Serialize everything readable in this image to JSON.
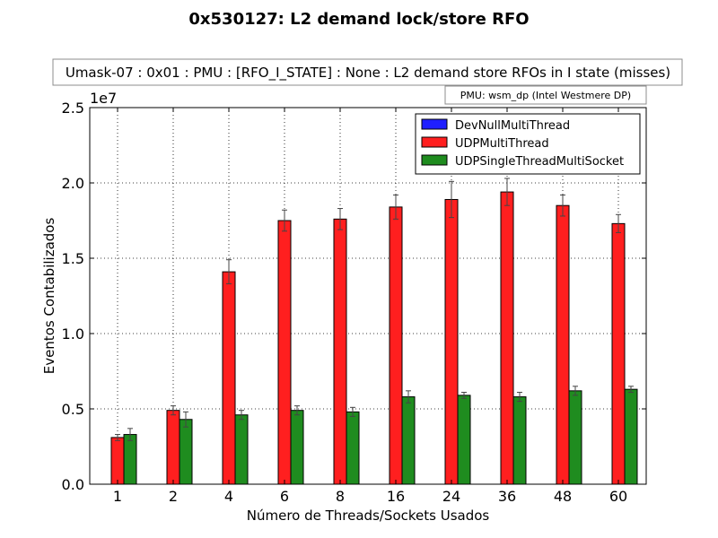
{
  "chart_data": {
    "type": "bar",
    "title": "0x530127: L2 demand lock/store RFO",
    "subtitle": "Umask-07 : 0x01 : PMU : [RFO_I_STATE] : None : L2 demand store RFOs in I state (misses)",
    "pmu_note": "PMU: wsm_dp (Intel Westmere DP)",
    "xlabel": "Número de Threads/Sockets Usados",
    "ylabel": "Eventos Contabilizados",
    "scale_label": "1e7",
    "ylim": [
      0,
      2.5
    ],
    "yticks": [
      "0.0",
      "0.5",
      "1.0",
      "1.5",
      "2.0",
      "2.5"
    ],
    "grid": true,
    "legend_position": "top-right",
    "categories": [
      "1",
      "2",
      "4",
      "6",
      "8",
      "16",
      "24",
      "36",
      "48",
      "60"
    ],
    "series": [
      {
        "name": "DevNullMultiThread",
        "color": "#1f1fff",
        "values": [
          0,
          0,
          0,
          0,
          0,
          0,
          0,
          0,
          0,
          0
        ],
        "errors": [
          0,
          0,
          0,
          0,
          0,
          0,
          0,
          0,
          0,
          0
        ]
      },
      {
        "name": "UDPMultiThread",
        "color": "#ff1f1f",
        "values": [
          0.31,
          0.49,
          1.41,
          1.75,
          1.76,
          1.84,
          1.89,
          1.94,
          1.85,
          1.73
        ],
        "errors": [
          0.02,
          0.03,
          0.08,
          0.07,
          0.07,
          0.08,
          0.12,
          0.09,
          0.07,
          0.06
        ]
      },
      {
        "name": "UDPSingleThreadMultiSocket",
        "color": "#1f8c1f",
        "values": [
          0.33,
          0.43,
          0.46,
          0.49,
          0.48,
          0.58,
          0.59,
          0.58,
          0.62,
          0.63
        ],
        "errors": [
          0.04,
          0.05,
          0.03,
          0.03,
          0.03,
          0.04,
          0.02,
          0.03,
          0.03,
          0.02
        ]
      }
    ]
  }
}
